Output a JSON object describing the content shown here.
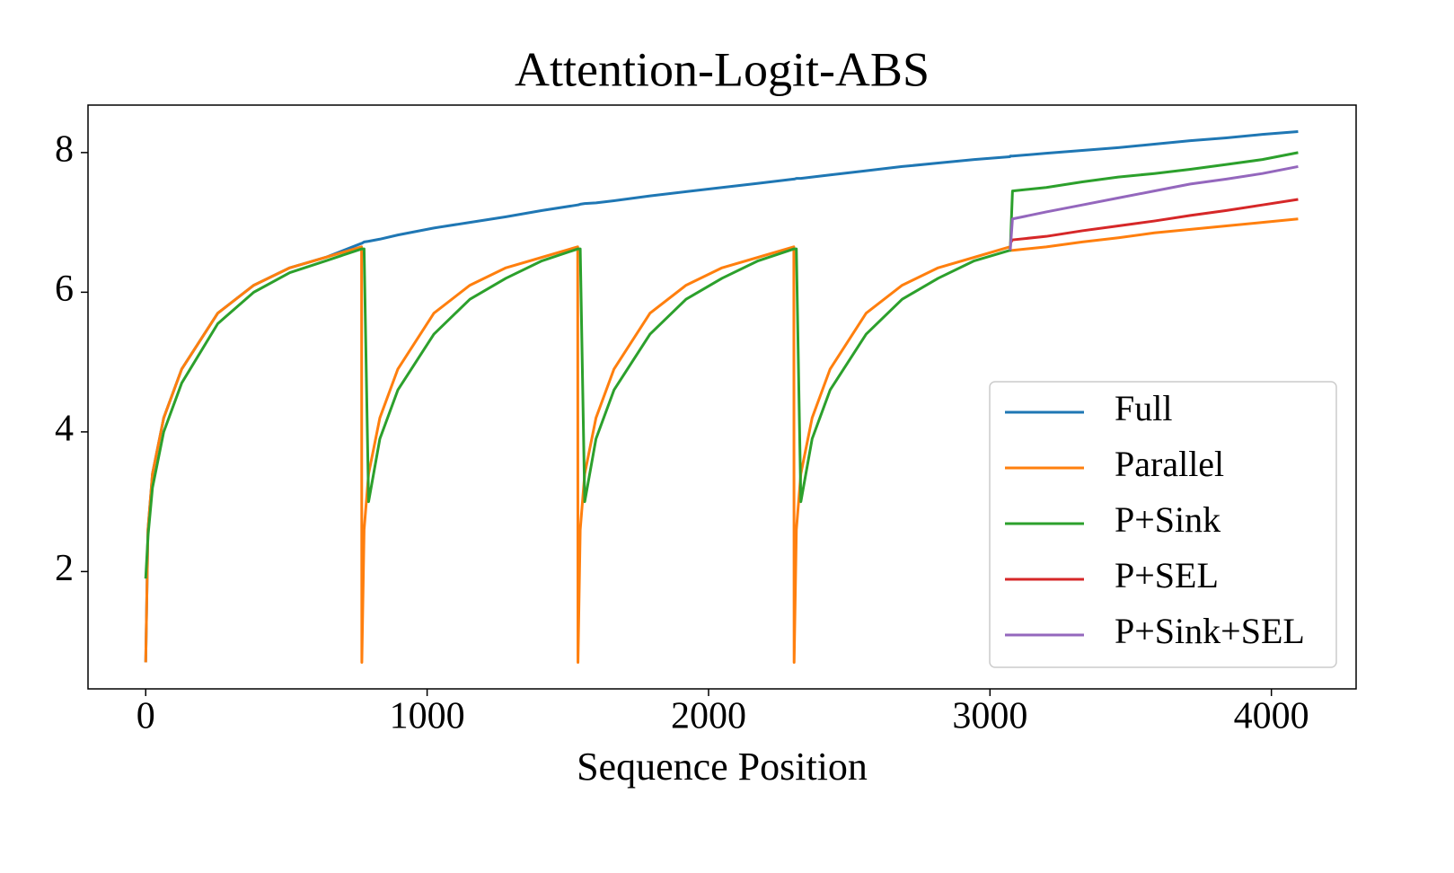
{
  "chart_data": {
    "type": "line",
    "title": "Attention-Logit-ABS",
    "xlabel": "Sequence Position",
    "x": [
      0,
      8,
      24,
      64,
      128,
      256,
      384,
      512,
      640,
      767,
      768,
      776,
      792,
      832,
      896,
      1024,
      1152,
      1280,
      1408,
      1535,
      1536,
      1544,
      1560,
      1600,
      1664,
      1792,
      1920,
      2048,
      2176,
      2303,
      2304,
      2312,
      2328,
      2368,
      2432,
      2560,
      2688,
      2816,
      2944,
      3071,
      3072,
      3080,
      3200,
      3328,
      3456,
      3584,
      3712,
      3840,
      3968,
      4095
    ],
    "series": [
      {
        "name": "Full",
        "color": "#1f77b4",
        "values": [
          0.7,
          2.6,
          3.4,
          4.2,
          4.9,
          5.7,
          6.1,
          6.35,
          6.5,
          6.7,
          6.7,
          6.72,
          6.73,
          6.76,
          6.82,
          6.92,
          7.0,
          7.08,
          7.17,
          7.25,
          7.25,
          7.26,
          7.27,
          7.28,
          7.31,
          7.38,
          7.44,
          7.5,
          7.56,
          7.62,
          7.62,
          7.63,
          7.63,
          7.65,
          7.68,
          7.74,
          7.8,
          7.85,
          7.9,
          7.94,
          7.95,
          7.95,
          7.99,
          8.03,
          8.07,
          8.12,
          8.17,
          8.21,
          8.26,
          8.3
        ]
      },
      {
        "name": "Parallel",
        "color": "#ff7f0e",
        "values": [
          0.7,
          2.6,
          3.4,
          4.2,
          4.9,
          5.7,
          6.1,
          6.35,
          6.5,
          6.65,
          0.7,
          2.6,
          3.4,
          4.2,
          4.9,
          5.7,
          6.1,
          6.35,
          6.5,
          6.65,
          0.7,
          2.6,
          3.4,
          4.2,
          4.9,
          5.7,
          6.1,
          6.35,
          6.5,
          6.65,
          0.7,
          2.6,
          3.4,
          4.2,
          4.9,
          5.7,
          6.1,
          6.35,
          6.5,
          6.65,
          6.6,
          6.6,
          6.65,
          6.72,
          6.78,
          6.85,
          6.9,
          6.95,
          7.0,
          7.05
        ]
      },
      {
        "name": "P+Sink",
        "color": "#2ca02c",
        "values": [
          1.9,
          2.5,
          3.2,
          4.0,
          4.7,
          5.55,
          6.0,
          6.28,
          6.45,
          6.62,
          6.62,
          6.62,
          3.0,
          3.9,
          4.6,
          5.4,
          5.9,
          6.2,
          6.45,
          6.62,
          6.62,
          6.62,
          3.0,
          3.9,
          4.6,
          5.4,
          5.9,
          6.2,
          6.45,
          6.62,
          6.62,
          6.62,
          3.0,
          3.9,
          4.6,
          5.4,
          5.9,
          6.2,
          6.45,
          6.6,
          6.6,
          7.45,
          7.5,
          7.58,
          7.65,
          7.7,
          7.76,
          7.83,
          7.9,
          8.0
        ]
      },
      {
        "name": "P+SEL",
        "color": "#d62728",
        "values": [
          null,
          null,
          null,
          null,
          null,
          null,
          null,
          null,
          null,
          null,
          null,
          null,
          null,
          null,
          null,
          null,
          null,
          null,
          null,
          null,
          null,
          null,
          null,
          null,
          null,
          null,
          null,
          null,
          null,
          null,
          null,
          null,
          null,
          null,
          null,
          null,
          null,
          null,
          null,
          null,
          6.7,
          6.75,
          6.8,
          6.88,
          6.95,
          7.02,
          7.1,
          7.17,
          7.25,
          7.33
        ]
      },
      {
        "name": "P+Sink+SEL",
        "color": "#9467bd",
        "values": [
          null,
          null,
          null,
          null,
          null,
          null,
          null,
          null,
          null,
          null,
          null,
          null,
          null,
          null,
          null,
          null,
          null,
          null,
          null,
          null,
          null,
          null,
          null,
          null,
          null,
          null,
          null,
          null,
          null,
          null,
          null,
          null,
          null,
          null,
          null,
          null,
          null,
          null,
          null,
          null,
          6.6,
          7.05,
          7.15,
          7.25,
          7.35,
          7.45,
          7.55,
          7.62,
          7.7,
          7.8
        ]
      }
    ],
    "xlim": [
      -205,
      4301
    ],
    "ylim": [
      0.32,
      8.68
    ],
    "xticks": [
      0,
      1000,
      2000,
      3000,
      4000
    ],
    "yticks": [
      2,
      4,
      6,
      8
    ],
    "legend": "lower right"
  }
}
